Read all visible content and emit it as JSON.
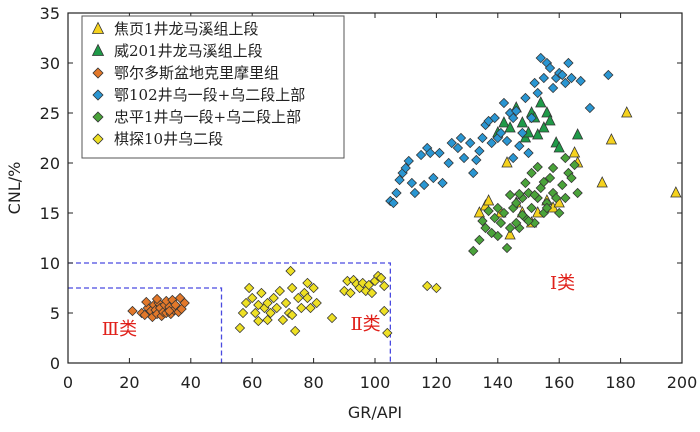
{
  "chart_data": {
    "type": "scatter",
    "xlabel": "GR/API",
    "ylabel": "CNL/%",
    "xlim": [
      0,
      200
    ],
    "ylim": [
      0,
      35
    ],
    "xticks": [
      "0",
      "20",
      "40",
      "60",
      "80",
      "100",
      "120",
      "140",
      "160",
      "180",
      "200"
    ],
    "yticks": [
      "0",
      "5",
      "10",
      "15",
      "20",
      "25",
      "30",
      "35"
    ],
    "legend_position": "top-left",
    "grid": false,
    "series": [
      {
        "name": "焦页1井龙马溪组上段",
        "marker": "triangle",
        "color": "#f5d21e",
        "points": [
          [
            134,
            15
          ],
          [
            136,
            15.7
          ],
          [
            137,
            16.2
          ],
          [
            141,
            15
          ],
          [
            144,
            12.8
          ],
          [
            146,
            16
          ],
          [
            148,
            15
          ],
          [
            151,
            14
          ],
          [
            153,
            15
          ],
          [
            156,
            16.2
          ],
          [
            158,
            15.5
          ],
          [
            160,
            16
          ],
          [
            165,
            21
          ],
          [
            166,
            20
          ],
          [
            174,
            18
          ],
          [
            177,
            22.3
          ],
          [
            182,
            25
          ],
          [
            198,
            17
          ],
          [
            143,
            20
          ]
        ]
      },
      {
        "name": "威201井龙马溪组上段",
        "marker": "triangle",
        "color": "#1f9a48",
        "points": [
          [
            140,
            23
          ],
          [
            142,
            24
          ],
          [
            144,
            23.5
          ],
          [
            146,
            25.5
          ],
          [
            148,
            24
          ],
          [
            149,
            22.5
          ],
          [
            150,
            23
          ],
          [
            151,
            25
          ],
          [
            152,
            24.5
          ],
          [
            153,
            22.8
          ],
          [
            154,
            26
          ],
          [
            155,
            23.5
          ],
          [
            156,
            25
          ],
          [
            157,
            24.2
          ],
          [
            159,
            22
          ],
          [
            160,
            21.5
          ],
          [
            166,
            22.8
          ]
        ]
      },
      {
        "name": "鄂尔多斯盆地克里摩里组",
        "marker": "diamond",
        "color": "#e2782a",
        "points": [
          [
            21,
            5.2
          ],
          [
            24,
            5
          ],
          [
            25,
            4.8
          ],
          [
            26,
            5.5
          ],
          [
            27,
            5.2
          ],
          [
            27.5,
            4.6
          ],
          [
            28,
            5.8
          ],
          [
            28.5,
            5.3
          ],
          [
            29,
            4.9
          ],
          [
            29.5,
            6
          ],
          [
            30,
            5.5
          ],
          [
            30.5,
            4.7
          ],
          [
            31,
            5.1
          ],
          [
            31.5,
            5.8
          ],
          [
            32,
            6.2
          ],
          [
            32,
            5
          ],
          [
            33,
            5.6
          ],
          [
            33.5,
            4.9
          ],
          [
            34,
            6.3
          ],
          [
            34.5,
            5.3
          ],
          [
            35,
            5.8
          ],
          [
            36,
            5.1
          ],
          [
            36.5,
            6.5
          ],
          [
            37,
            5.4
          ],
          [
            38,
            6
          ],
          [
            25.5,
            6.1
          ],
          [
            29,
            6.4
          ],
          [
            33,
            5.2
          ]
        ]
      },
      {
        "name": "鄂102井乌一段+乌二段上部",
        "marker": "diamond",
        "color": "#2a96d2",
        "points": [
          [
            105,
            16.2
          ],
          [
            106,
            16
          ],
          [
            107,
            17
          ],
          [
            108,
            18.3
          ],
          [
            109,
            19
          ],
          [
            110,
            19.5
          ],
          [
            111,
            20.2
          ],
          [
            112,
            18
          ],
          [
            113,
            17
          ],
          [
            115,
            20.8
          ],
          [
            116,
            17.8
          ],
          [
            117,
            21.5
          ],
          [
            119,
            18.5
          ],
          [
            121,
            21
          ],
          [
            122,
            18
          ],
          [
            124,
            20
          ],
          [
            125,
            22
          ],
          [
            127,
            21.5
          ],
          [
            128,
            22.5
          ],
          [
            129,
            20.5
          ],
          [
            131,
            22
          ],
          [
            133,
            20.3
          ],
          [
            134,
            21.2
          ],
          [
            135,
            22.5
          ],
          [
            136,
            23.8
          ],
          [
            137,
            24.2
          ],
          [
            138,
            22
          ],
          [
            139,
            24.5
          ],
          [
            140,
            22.5
          ],
          [
            141,
            23
          ],
          [
            142,
            26
          ],
          [
            143,
            22.2
          ],
          [
            144,
            25
          ],
          [
            145,
            24.5
          ],
          [
            146,
            25.2
          ],
          [
            147,
            21.7
          ],
          [
            148,
            23
          ],
          [
            149,
            26.5
          ],
          [
            150,
            21
          ],
          [
            151,
            24.5
          ],
          [
            152,
            28
          ],
          [
            153,
            27
          ],
          [
            154,
            30.5
          ],
          [
            155,
            28.5
          ],
          [
            156,
            30
          ],
          [
            157,
            29.5
          ],
          [
            158,
            27.5
          ],
          [
            159,
            28.5
          ],
          [
            160,
            29
          ],
          [
            161,
            28.8
          ],
          [
            162,
            28
          ],
          [
            163,
            30
          ],
          [
            164,
            28.5
          ],
          [
            167,
            28.2
          ],
          [
            170,
            25.5
          ],
          [
            176,
            28.8
          ],
          [
            132,
            19
          ],
          [
            118,
            21
          ],
          [
            145,
            20.5
          ]
        ]
      },
      {
        "name": "忠平1井乌一段+乌二段上部",
        "marker": "diamond",
        "color": "#4aa33a",
        "points": [
          [
            132,
            11.2
          ],
          [
            134,
            12.3
          ],
          [
            136,
            13.5
          ],
          [
            138,
            13
          ],
          [
            139,
            14.5
          ],
          [
            140,
            12.7
          ],
          [
            141,
            14
          ],
          [
            142,
            15
          ],
          [
            143,
            11.5
          ],
          [
            144,
            13.5
          ],
          [
            145,
            15.5
          ],
          [
            146,
            16
          ],
          [
            147,
            13.5
          ],
          [
            148,
            16.5
          ],
          [
            149,
            14.5
          ],
          [
            150,
            17
          ],
          [
            151,
            15.5
          ],
          [
            152,
            14
          ],
          [
            153,
            16.5
          ],
          [
            154,
            17.5
          ],
          [
            155,
            15
          ],
          [
            156,
            16
          ],
          [
            157,
            18.5
          ],
          [
            158,
            17
          ],
          [
            159,
            16.5
          ],
          [
            160,
            15
          ],
          [
            161,
            17.8
          ],
          [
            162,
            16.5
          ],
          [
            163,
            19
          ],
          [
            164,
            18.5
          ],
          [
            166,
            17
          ],
          [
            150,
            14.2
          ],
          [
            152,
            16.8
          ],
          [
            156,
            15.5
          ],
          [
            158,
            19.5
          ],
          [
            146,
            14
          ],
          [
            148,
            14.8
          ],
          [
            144,
            16.8
          ],
          [
            140,
            15.5
          ],
          [
            137,
            15.2
          ],
          [
            135,
            14.2
          ],
          [
            147,
            16.9
          ],
          [
            149,
            18
          ],
          [
            151,
            19
          ],
          [
            153,
            19.6
          ],
          [
            155,
            18.1
          ],
          [
            162,
            20.5
          ],
          [
            165,
            19.8
          ]
        ]
      },
      {
        "name": "棋探10井乌二段",
        "marker": "diamond",
        "color": "#eee024",
        "points": [
          [
            56,
            3.5
          ],
          [
            57,
            5
          ],
          [
            58,
            6
          ],
          [
            59,
            7.5
          ],
          [
            60,
            6.5
          ],
          [
            61,
            5
          ],
          [
            62,
            4.2
          ],
          [
            63,
            7
          ],
          [
            64,
            5.5
          ],
          [
            65,
            6
          ],
          [
            66,
            5
          ],
          [
            67,
            6.5
          ],
          [
            68,
            5.5
          ],
          [
            69,
            7.2
          ],
          [
            70,
            4.3
          ],
          [
            71,
            6
          ],
          [
            72,
            5
          ],
          [
            72.5,
            9.2
          ],
          [
            73,
            7.5
          ],
          [
            74,
            3.2
          ],
          [
            75,
            6.5
          ],
          [
            76,
            5.5
          ],
          [
            77,
            7
          ],
          [
            78,
            8
          ],
          [
            79,
            5.5
          ],
          [
            80,
            7.5
          ],
          [
            81,
            6
          ],
          [
            86,
            4.5
          ],
          [
            90,
            7.2
          ],
          [
            91,
            8.2
          ],
          [
            92,
            7
          ],
          [
            93,
            8.3
          ],
          [
            94,
            7.9
          ],
          [
            95,
            7.5
          ],
          [
            96,
            8
          ],
          [
            97,
            7.2
          ],
          [
            98,
            7.8
          ],
          [
            99,
            7
          ],
          [
            100,
            8.2
          ],
          [
            101,
            8.7
          ],
          [
            102,
            8.5
          ],
          [
            103,
            7.7
          ],
          [
            103,
            5.2
          ],
          [
            104,
            3
          ],
          [
            117,
            7.7
          ],
          [
            120,
            7.5
          ],
          [
            65,
            4.3
          ],
          [
            73,
            4.8
          ],
          [
            78,
            6.5
          ],
          [
            62,
            5.8
          ]
        ]
      }
    ],
    "annotations": [
      {
        "text": "Ⅰ类",
        "x": 157,
        "y": 7.4
      },
      {
        "text": "Ⅱ类",
        "x": 92,
        "y": 3.3
      },
      {
        "text": "Ⅲ类",
        "x": 11,
        "y": 2.8
      }
    ],
    "boundary_boxes": [
      {
        "x": [
          0,
          50
        ],
        "y": [
          0,
          7.5
        ]
      },
      {
        "x": [
          0,
          105
        ],
        "y": [
          0,
          10
        ]
      }
    ],
    "colors": {
      "axis": "#222222",
      "dashed_box": "#4a4ae0",
      "class_label": "#e0201a"
    }
  }
}
